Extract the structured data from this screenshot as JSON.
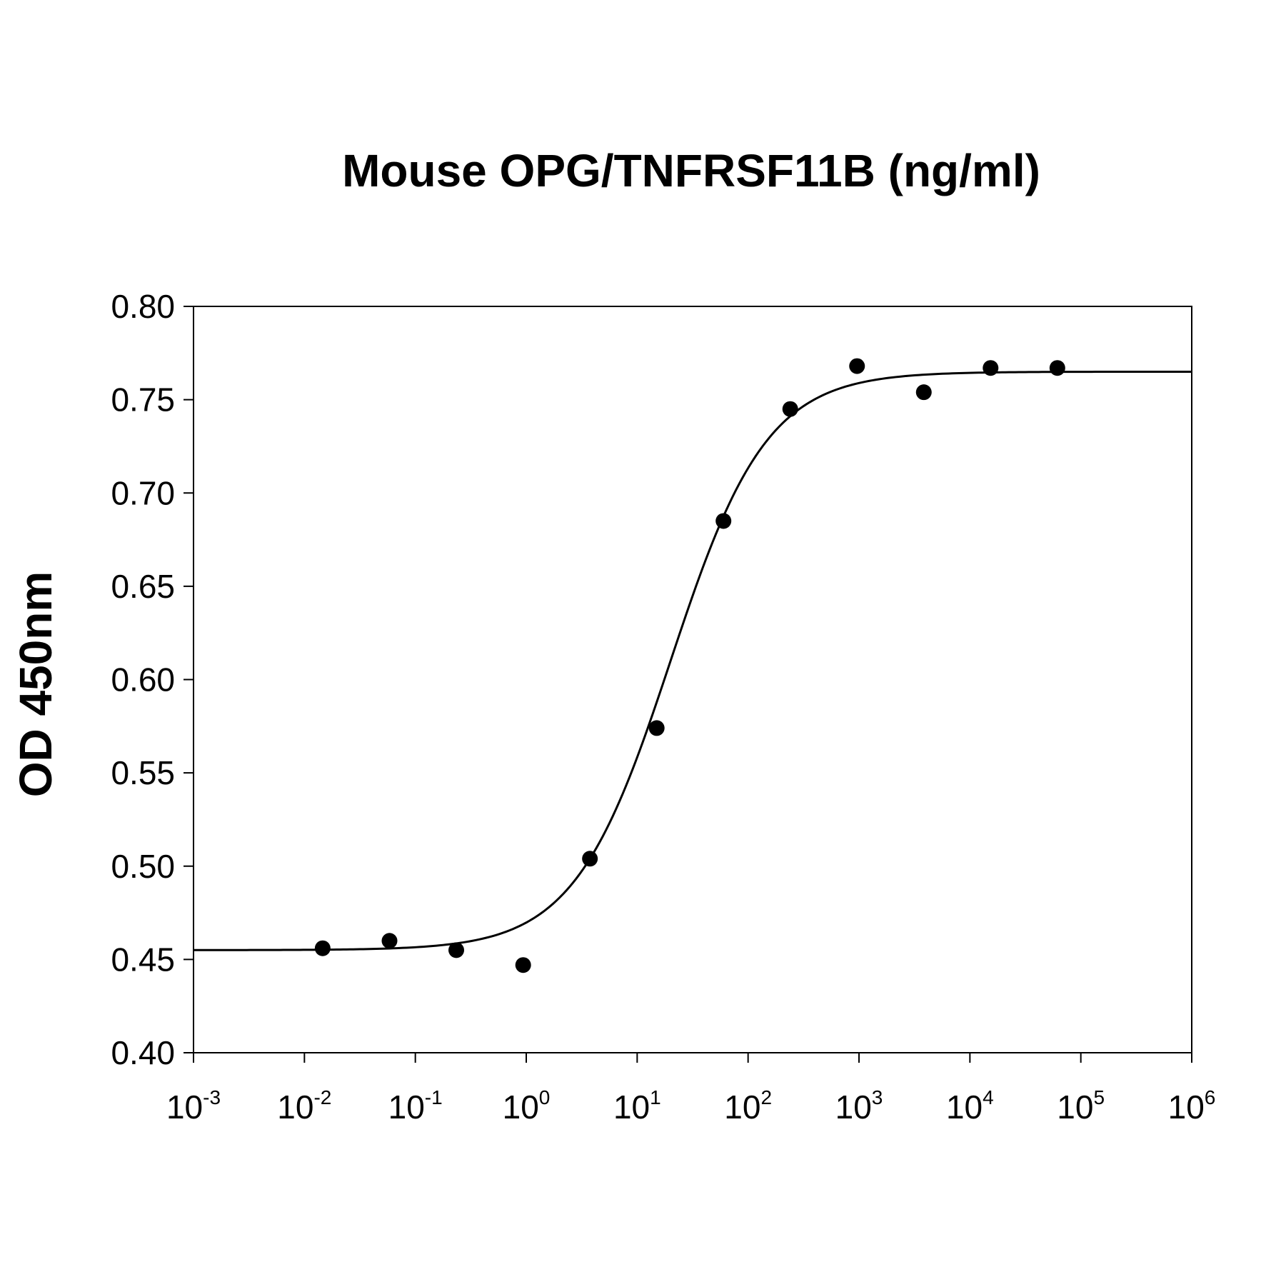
{
  "chart_data": {
    "type": "scatter",
    "title": "Mouse OPG/TNFRSF11B (ng/ml)",
    "xlabel": "",
    "ylabel": "OD 450nm",
    "xscale": "log",
    "xlim": [
      0.001,
      1000000
    ],
    "ylim": [
      0.4,
      0.8
    ],
    "yticks": [
      "0.40",
      "0.45",
      "0.50",
      "0.55",
      "0.60",
      "0.65",
      "0.70",
      "0.75",
      "0.80"
    ],
    "xticks": [
      {
        "base": "10",
        "exp": "-3"
      },
      {
        "base": "10",
        "exp": "-2"
      },
      {
        "base": "10",
        "exp": "-1"
      },
      {
        "base": "10",
        "exp": "0"
      },
      {
        "base": "10",
        "exp": "1"
      },
      {
        "base": "10",
        "exp": "2"
      },
      {
        "base": "10",
        "exp": "3"
      },
      {
        "base": "10",
        "exp": "4"
      },
      {
        "base": "10",
        "exp": "5"
      },
      {
        "base": "10",
        "exp": "6"
      }
    ],
    "grid": false,
    "series": [
      {
        "kind": "points",
        "x": [
          0.0146,
          0.0585,
          0.234,
          0.938,
          3.75,
          15.0,
          60.0,
          240,
          960,
          3840,
          15360,
          61440
        ],
        "y": [
          0.456,
          0.46,
          0.455,
          0.447,
          0.504,
          0.574,
          0.685,
          0.745,
          0.768,
          0.754,
          0.767,
          0.767
        ]
      },
      {
        "kind": "fit",
        "model": "4PL",
        "bottom": 0.455,
        "top": 0.765,
        "ec50": 20,
        "hill": 1.0
      }
    ]
  }
}
